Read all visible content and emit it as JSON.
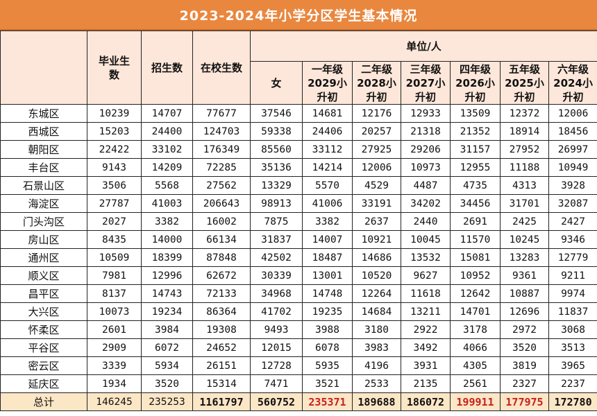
{
  "title": "2023-2024年小学分区学生基本情况",
  "headers": {
    "unit": "单位/人",
    "graduates": "毕业生数",
    "enrolled": "招生数",
    "in_school": "在校生数",
    "female": "女",
    "grades": [
      "一年级2029小升初",
      "二年级2028小升初",
      "三年级2027小升初",
      "四年级2026小升初",
      "五年级2025小升初",
      "六年级2024小升初"
    ]
  },
  "rows": [
    [
      "东城区",
      "10239",
      "14707",
      "77677",
      "37546",
      "14681",
      "12176",
      "12933",
      "13509",
      "12372",
      "12006"
    ],
    [
      "西城区",
      "15203",
      "24400",
      "124703",
      "59338",
      "24406",
      "20257",
      "21318",
      "21352",
      "18914",
      "18456"
    ],
    [
      "朝阳区",
      "22422",
      "33102",
      "176349",
      "85560",
      "33112",
      "27925",
      "29206",
      "31157",
      "27952",
      "26997"
    ],
    [
      "丰台区",
      "9143",
      "14209",
      "72285",
      "35136",
      "14214",
      "12006",
      "10973",
      "12955",
      "11188",
      "10949"
    ],
    [
      "石景山区",
      "3506",
      "5568",
      "27562",
      "13329",
      "5570",
      "4529",
      "4487",
      "4735",
      "4313",
      "3928"
    ],
    [
      "海淀区",
      "27787",
      "41003",
      "206643",
      "98913",
      "41006",
      "33191",
      "34202",
      "34456",
      "31701",
      "32087"
    ],
    [
      "门头沟区",
      "2027",
      "3382",
      "16002",
      "7875",
      "3382",
      "2637",
      "2440",
      "2691",
      "2425",
      "2427"
    ],
    [
      "房山区",
      "8435",
      "14000",
      "66134",
      "31837",
      "14007",
      "10921",
      "10045",
      "11570",
      "10245",
      "9346"
    ],
    [
      "通州区",
      "10509",
      "18399",
      "87848",
      "42502",
      "18487",
      "14686",
      "13532",
      "15081",
      "13283",
      "12779"
    ],
    [
      "顺义区",
      "7981",
      "12996",
      "62672",
      "30339",
      "13001",
      "10520",
      "9627",
      "10952",
      "9361",
      "9211"
    ],
    [
      "昌平区",
      "8137",
      "14743",
      "72133",
      "34968",
      "14748",
      "12264",
      "11618",
      "12642",
      "10887",
      "9974"
    ],
    [
      "大兴区",
      "10073",
      "19234",
      "86364",
      "41702",
      "19235",
      "14684",
      "13211",
      "14701",
      "12696",
      "11837"
    ],
    [
      "怀柔区",
      "2601",
      "3984",
      "19308",
      "9493",
      "3988",
      "3180",
      "2922",
      "3178",
      "2972",
      "3068"
    ],
    [
      "平谷区",
      "2909",
      "6072",
      "24652",
      "12015",
      "6078",
      "3983",
      "3492",
      "4066",
      "3520",
      "3513"
    ],
    [
      "密云区",
      "3339",
      "5934",
      "26151",
      "12728",
      "5935",
      "4196",
      "3931",
      "4305",
      "3819",
      "3965"
    ],
    [
      "延庆区",
      "1934",
      "3520",
      "15314",
      "7471",
      "3521",
      "2533",
      "2135",
      "2561",
      "2327",
      "2237"
    ]
  ],
  "total": [
    "总计",
    "146245",
    "235253",
    "1161797",
    "560752",
    "235371",
    "189688",
    "186072",
    "199911",
    "177975",
    "172780"
  ],
  "colors": {
    "title_bg": "#e9873f",
    "header_bg": "#fde7da",
    "total_bg": "#fbe6c6",
    "highlight_red": "#c8201e"
  }
}
